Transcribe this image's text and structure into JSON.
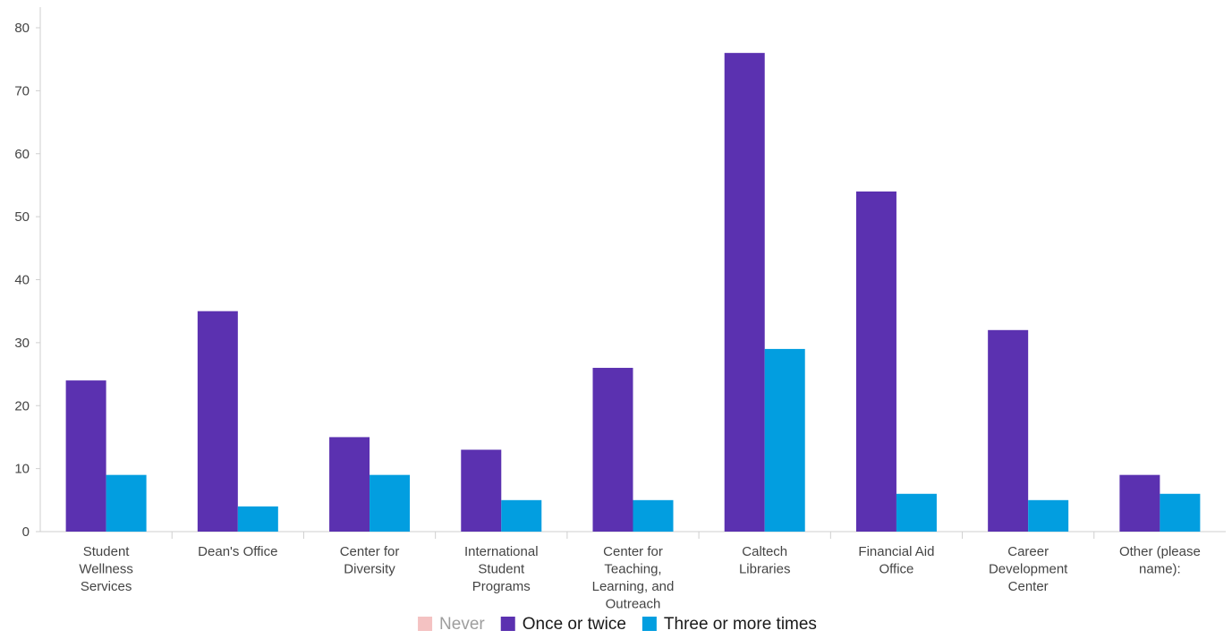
{
  "chart_data": {
    "type": "bar",
    "title": "",
    "xlabel": "",
    "ylabel": "",
    "ylim": [
      0,
      80
    ],
    "yticks": [
      0,
      10,
      20,
      30,
      40,
      50,
      60,
      70,
      80
    ],
    "grid": false,
    "legend_position": "bottom",
    "categories": [
      "Student Wellness Services",
      "Dean's Office",
      "Center for Diversity",
      "International Student Programs",
      "Center for Teaching, Learning, and Outreach",
      "Caltech Libraries",
      "Financial Aid Office",
      "Career Development Center",
      "Other (please name):"
    ],
    "category_label_lines": [
      [
        "Student",
        "Wellness",
        "Services"
      ],
      [
        "Dean's Office"
      ],
      [
        "Center for",
        "Diversity"
      ],
      [
        "International",
        "Student",
        "Programs"
      ],
      [
        "Center for",
        "Teaching,",
        "Learning, and",
        "Outreach"
      ],
      [
        "Caltech",
        "Libraries"
      ],
      [
        "Financial Aid",
        "Office"
      ],
      [
        "Career",
        "Development",
        "Center"
      ],
      [
        "Other (please",
        "name):"
      ]
    ],
    "series": [
      {
        "name": "Never",
        "color": "#f4c2c2",
        "legend_text_color": "#9e9e9e",
        "values": [
          0,
          0,
          0,
          0,
          0,
          0,
          0,
          0,
          0
        ]
      },
      {
        "name": "Once or twice",
        "color": "#5b31b0",
        "legend_text_color": "#1a1a1a",
        "values": [
          24,
          35,
          15,
          13,
          26,
          76,
          54,
          32,
          9
        ]
      },
      {
        "name": "Three or more times",
        "color": "#029ee0",
        "legend_text_color": "#1a1a1a",
        "values": [
          9,
          4,
          9,
          5,
          5,
          29,
          6,
          5,
          6
        ]
      }
    ]
  }
}
